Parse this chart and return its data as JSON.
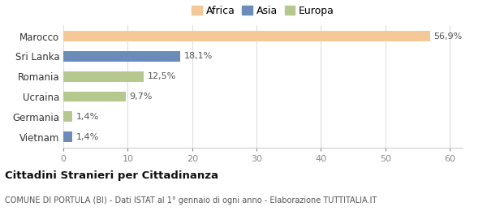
{
  "categories": [
    "Vietnam",
    "Germania",
    "Ucraina",
    "Romania",
    "Sri Lanka",
    "Marocco"
  ],
  "values": [
    1.4,
    1.4,
    9.7,
    12.5,
    18.1,
    56.9
  ],
  "labels": [
    "1,4%",
    "1,4%",
    "9,7%",
    "12,5%",
    "18,1%",
    "56,9%"
  ],
  "colors": [
    "#6b8cba",
    "#b5c98e",
    "#b5c98e",
    "#b5c98e",
    "#6b8cba",
    "#f5c897"
  ],
  "legend": [
    {
      "label": "Africa",
      "color": "#f5c897"
    },
    {
      "label": "Asia",
      "color": "#6b8cba"
    },
    {
      "label": "Europa",
      "color": "#b5c98e"
    }
  ],
  "xlim": [
    0,
    62
  ],
  "xticks": [
    0,
    10,
    20,
    30,
    40,
    50,
    60
  ],
  "title": "Cittadini Stranieri per Cittadinanza",
  "subtitle": "COMUNE DI PORTULA (BI) - Dati ISTAT al 1° gennaio di ogni anno - Elaborazione TUTTITALIA.IT",
  "background_color": "#ffffff",
  "bar_height": 0.52
}
